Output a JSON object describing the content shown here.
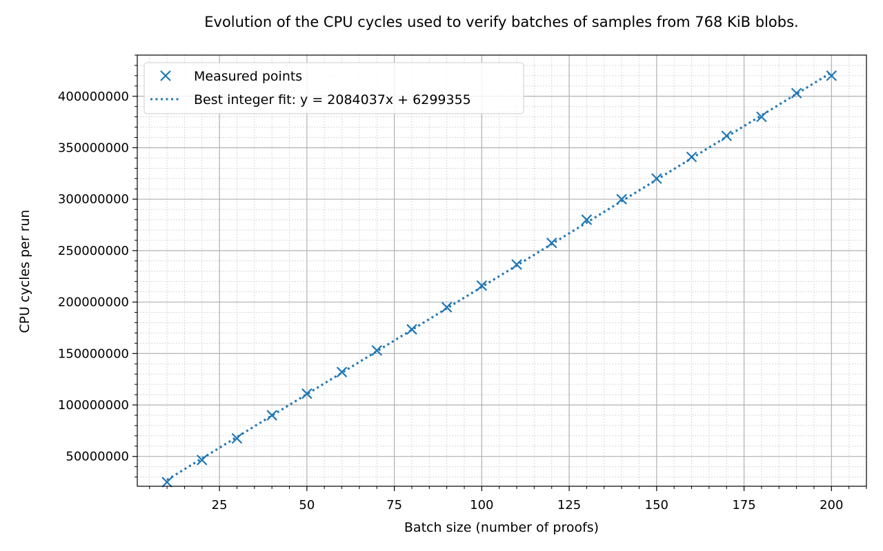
{
  "chart_data": {
    "type": "scatter",
    "title": "Evolution of the CPU cycles used to verify batches of samples from 768 KiB blobs.",
    "xlabel": "Batch size (number of proofs)",
    "ylabel": "CPU cycles per run",
    "xlim": [
      1.5,
      210
    ],
    "ylim": [
      21000000,
      440000000
    ],
    "xticks": [
      25,
      50,
      75,
      100,
      125,
      150,
      175,
      200
    ],
    "xtick_labels": [
      "25",
      "50",
      "75",
      "100",
      "125",
      "150",
      "175",
      "200"
    ],
    "yticks": [
      50000000,
      100000000,
      150000000,
      200000000,
      250000000,
      300000000,
      350000000,
      400000000
    ],
    "ytick_labels": [
      "50000000",
      "100000000",
      "150000000",
      "200000000",
      "250000000",
      "300000000",
      "350000000",
      "400000000"
    ],
    "grid": "major and minor",
    "legend_position": "top-left",
    "series": [
      {
        "name": "Measured points",
        "marker": "x",
        "color": "#1f77b4",
        "x": [
          10,
          20,
          30,
          40,
          50,
          60,
          70,
          80,
          90,
          100,
          110,
          120,
          130,
          140,
          150,
          160,
          170,
          180,
          190,
          200
        ],
        "y": [
          25000000,
          46500000,
          67500000,
          90000000,
          111000000,
          132000000,
          153000000,
          173500000,
          195000000,
          216000000,
          236500000,
          257500000,
          280000000,
          300000000,
          320000000,
          341000000,
          361500000,
          380000000,
          403000000,
          420000000
        ]
      },
      {
        "name": "Best integer fit: y = 2084037x + 6299355",
        "style": "dotted-line",
        "color": "#1f77b4",
        "slope": 2084037,
        "intercept": 6299355,
        "x": [
          10,
          200
        ]
      }
    ]
  }
}
